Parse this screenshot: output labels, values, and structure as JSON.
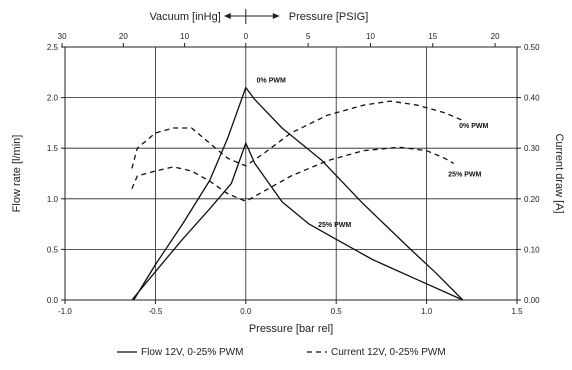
{
  "chart_data": {
    "type": "line",
    "bottom_axis": {
      "label": "Pressure [bar rel]",
      "range": [
        -1.0,
        1.5
      ],
      "ticks": [
        "-1.0",
        "-0.5",
        "0.0",
        "0.5",
        "1.0",
        "1.5"
      ]
    },
    "top_axis": {
      "label_left": "Vacuum [inHg]",
      "label_right": "Pressure [PSIG]",
      "ticks": [
        {
          "label": "30",
          "bar": -1.0159
        },
        {
          "label": "20",
          "bar": -0.6773
        },
        {
          "label": "10",
          "bar": -0.3386
        },
        {
          "label": "0",
          "bar": 0.0
        },
        {
          "label": "5",
          "bar": 0.3447
        },
        {
          "label": "10",
          "bar": 0.6895
        },
        {
          "label": "15",
          "bar": 1.0342
        },
        {
          "label": "20",
          "bar": 1.379
        }
      ]
    },
    "left_axis": {
      "label": "Flow rate [l/min]",
      "range": [
        0.0,
        2.5
      ],
      "ticks": [
        "0.0",
        "0.5",
        "1.0",
        "1.5",
        "2.0",
        "2.5"
      ]
    },
    "right_axis": {
      "label": "Current draw [A]",
      "range": [
        0.0,
        0.5
      ],
      "ticks": [
        "0.00",
        "0.10",
        "0.20",
        "0.30",
        "0.40",
        "0.50"
      ]
    },
    "grid": true,
    "series": [
      {
        "name": "Flow 12V, 0-25% PWM",
        "axis": "left",
        "style": "solid",
        "points": [
          [
            -0.62,
            0.0
          ],
          [
            -0.5,
            0.35
          ],
          [
            -0.35,
            0.75
          ],
          [
            -0.2,
            1.18
          ],
          [
            -0.1,
            1.6
          ],
          [
            0.0,
            2.1
          ],
          [
            0.05,
            1.98
          ],
          [
            0.2,
            1.7
          ],
          [
            0.42,
            1.38
          ],
          [
            0.65,
            0.95
          ],
          [
            0.9,
            0.52
          ],
          [
            1.05,
            0.27
          ],
          [
            1.2,
            0.0
          ]
        ]
      },
      {
        "name": "Flow 12V, 0-25% PWM",
        "axis": "left",
        "style": "solid",
        "points": [
          [
            -0.63,
            0.0
          ],
          [
            -0.5,
            0.28
          ],
          [
            -0.35,
            0.6
          ],
          [
            -0.2,
            0.9
          ],
          [
            -0.08,
            1.15
          ],
          [
            0.0,
            1.55
          ],
          [
            0.05,
            1.35
          ],
          [
            0.2,
            0.97
          ],
          [
            0.35,
            0.75
          ],
          [
            0.5,
            0.6
          ],
          [
            0.7,
            0.4
          ],
          [
            0.95,
            0.2
          ],
          [
            1.2,
            0.0
          ]
        ]
      },
      {
        "name": "Current 12V, 0-25% PWM",
        "axis": "right",
        "style": "dashed",
        "points": [
          [
            -0.63,
            0.26
          ],
          [
            -0.6,
            0.3
          ],
          [
            -0.5,
            0.33
          ],
          [
            -0.4,
            0.34
          ],
          [
            -0.3,
            0.34
          ],
          [
            -0.2,
            0.31
          ],
          [
            -0.1,
            0.28
          ],
          [
            0.0,
            0.265
          ],
          [
            0.1,
            0.29
          ],
          [
            0.25,
            0.33
          ],
          [
            0.45,
            0.365
          ],
          [
            0.65,
            0.385
          ],
          [
            0.8,
            0.393
          ],
          [
            0.95,
            0.385
          ],
          [
            1.1,
            0.37
          ],
          [
            1.2,
            0.355
          ]
        ]
      },
      {
        "name": "Current 12V, 0-25% PWM",
        "axis": "right",
        "style": "dashed",
        "points": [
          [
            -0.63,
            0.22
          ],
          [
            -0.6,
            0.245
          ],
          [
            -0.5,
            0.255
          ],
          [
            -0.4,
            0.263
          ],
          [
            -0.3,
            0.255
          ],
          [
            -0.2,
            0.235
          ],
          [
            -0.1,
            0.21
          ],
          [
            0.0,
            0.195
          ],
          [
            0.1,
            0.215
          ],
          [
            0.25,
            0.245
          ],
          [
            0.45,
            0.275
          ],
          [
            0.65,
            0.295
          ],
          [
            0.85,
            0.302
          ],
          [
            1.0,
            0.295
          ],
          [
            1.1,
            0.28
          ],
          [
            1.15,
            0.27
          ]
        ]
      }
    ],
    "annotations": [
      {
        "text": "0% PWM",
        "x": 0.06,
        "y_left": 2.15
      },
      {
        "text": "0% PWM",
        "x": 1.18,
        "y_left": 1.7
      },
      {
        "text": "25% PWM",
        "x": 0.4,
        "y_left": 0.72
      },
      {
        "text": "25% PWM",
        "x": 1.12,
        "y_left": 1.22
      }
    ],
    "legend": {
      "placement": "bottom",
      "entries": [
        {
          "label": "Flow 12V, 0-25% PWM",
          "style": "solid"
        },
        {
          "label": "Current 12V, 0-25% PWM",
          "style": "dashed"
        }
      ]
    },
    "line_color": "#111111",
    "grid_color": "#222222"
  }
}
